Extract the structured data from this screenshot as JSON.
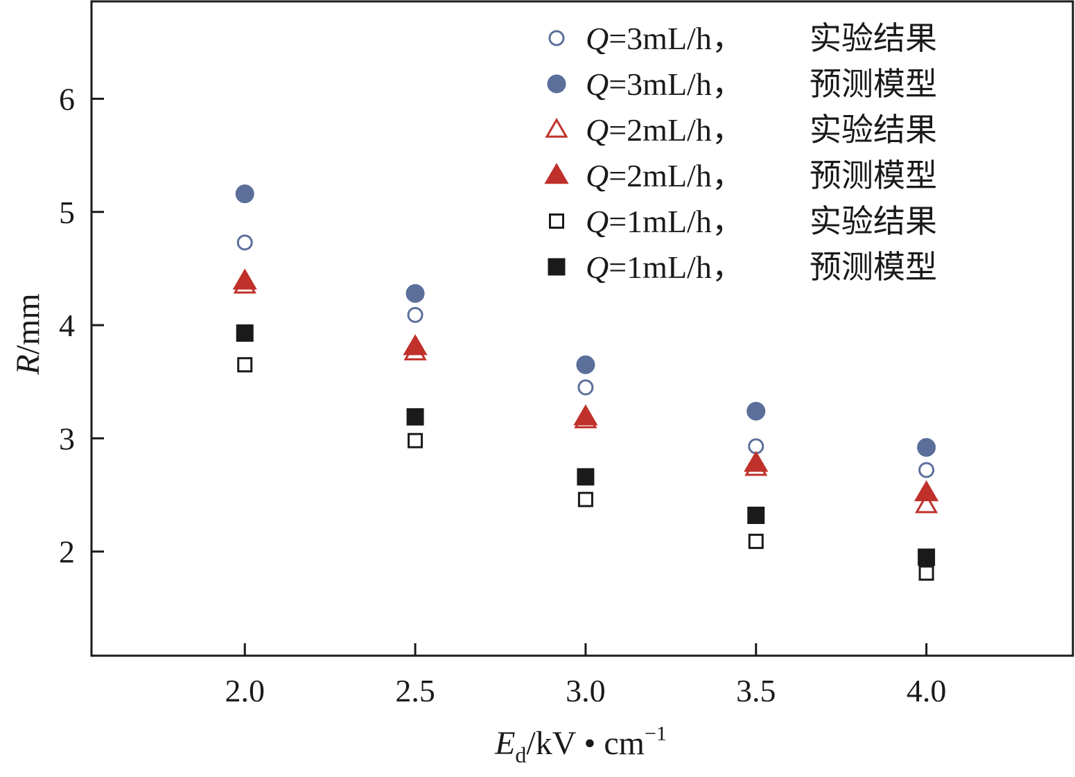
{
  "chart_data": {
    "type": "scatter",
    "title": "",
    "xlabel": {
      "main": "E",
      "subscript": "d",
      "rest": "/kV • cm",
      "superscript": "−1"
    },
    "ylabel": {
      "main": "R",
      "rest": "/mm"
    },
    "xlim": [
      1.55,
      4.43
    ],
    "ylim": [
      1.08,
      6.86
    ],
    "xticks": [
      2.0,
      2.5,
      3.0,
      3.5,
      4.0
    ],
    "xtick_labels": [
      "2.0",
      "2.5",
      "3.0",
      "3.5",
      "4.0"
    ],
    "yticks": [
      2,
      3,
      4,
      5,
      6
    ],
    "ytick_labels": [
      "2",
      "3",
      "4",
      "5",
      "6"
    ],
    "grid": false,
    "legend_position": "top-right",
    "x": [
      2.0,
      2.5,
      3.0,
      3.5,
      4.0
    ],
    "series": [
      {
        "legend": {
          "var": "Q",
          "rest": "=3mL/h，",
          "desc": "实验结果"
        },
        "marker": "circle-open",
        "color": "#5b6f9a",
        "values": [
          4.73,
          4.09,
          3.45,
          2.93,
          2.72
        ]
      },
      {
        "legend": {
          "var": "Q",
          "rest": "=3mL/h，",
          "desc": "预测模型"
        },
        "marker": "circle-filled",
        "color": "#5b6f9a",
        "values": [
          5.16,
          4.28,
          3.65,
          3.24,
          2.92
        ]
      },
      {
        "legend": {
          "var": "Q",
          "rest": "=2mL/h，",
          "desc": "实验结果"
        },
        "marker": "triangle-open",
        "color": "#c0312b",
        "values": [
          4.35,
          3.76,
          3.16,
          2.74,
          2.41
        ]
      },
      {
        "legend": {
          "var": "Q",
          "rest": "=2mL/h，",
          "desc": "预测模型"
        },
        "marker": "triangle-filled",
        "color": "#c0312b",
        "values": [
          4.39,
          3.81,
          3.19,
          2.78,
          2.52
        ]
      },
      {
        "legend": {
          "var": "Q",
          "rest": "=1mL/h，",
          "desc": "实验结果"
        },
        "marker": "square-open",
        "color": "#1a1a1a",
        "values": [
          3.65,
          2.98,
          2.46,
          2.09,
          1.81
        ]
      },
      {
        "legend": {
          "var": "Q",
          "rest": "=1mL/h，",
          "desc": "预测模型"
        },
        "marker": "square-filled",
        "color": "#1a1a1a",
        "values": [
          3.93,
          3.19,
          2.66,
          2.32,
          1.95
        ]
      }
    ]
  }
}
